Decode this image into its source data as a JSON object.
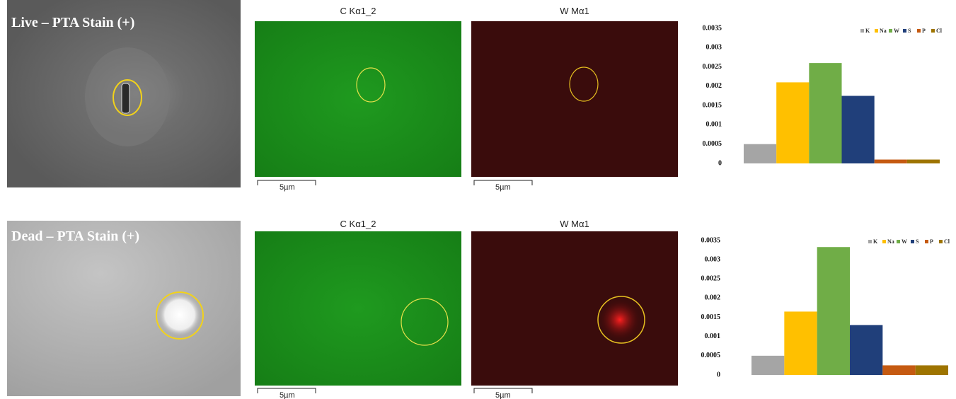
{
  "panels": [
    {
      "label": "Live – PTA Stain (+)",
      "map1_title": "C Kα1_2",
      "map2_title": "W Mα1",
      "scale1": "5µm",
      "scale2": "5µm"
    },
    {
      "label": "Dead – PTA Stain (+)",
      "map1_title": "C Kα1_2",
      "map2_title": "W Mα1",
      "scale1": "5µm",
      "scale2": "5µm"
    }
  ],
  "chart_data": [
    {
      "type": "bar",
      "categories": [
        "K",
        "Na",
        "W",
        "S",
        "P",
        "Cl"
      ],
      "values": [
        0.0005,
        0.0021,
        0.0026,
        0.00175,
        0.0001,
        0.0001
      ],
      "colors": [
        "#a5a5a5",
        "#ffc000",
        "#70ad47",
        "#203f7a",
        "#c55a11",
        "#9e7400"
      ],
      "ylim": [
        0,
        0.0035
      ],
      "yticks": [
        0,
        0.0005,
        0.001,
        0.0015,
        0.002,
        0.0025,
        0.003,
        0.0035
      ],
      "legend": "top-right"
    },
    {
      "type": "bar",
      "categories": [
        "K",
        "Na",
        "W",
        "S",
        "P",
        "Cl"
      ],
      "values": [
        0.0005,
        0.00165,
        0.00333,
        0.0013,
        0.00025,
        0.00025
      ],
      "colors": [
        "#a5a5a5",
        "#ffc000",
        "#70ad47",
        "#203f7a",
        "#c55a11",
        "#9e7400"
      ],
      "ylim": [
        0,
        0.0035
      ],
      "yticks": [
        0,
        0.0005,
        0.001,
        0.0015,
        0.002,
        0.0025,
        0.003,
        0.0035
      ],
      "legend": "top-right"
    }
  ]
}
